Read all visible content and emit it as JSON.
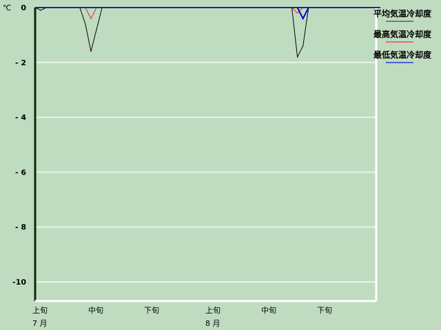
{
  "chart_data": {
    "type": "line",
    "yunit": "℃",
    "ylim": [
      -10.7,
      0
    ],
    "yticks": [
      0,
      -2,
      -4,
      -6,
      -8,
      -10
    ],
    "ytick_labels": [
      "0",
      "- 2",
      "- 4",
      "- 6",
      "- 8",
      "-10"
    ],
    "x_start": "7/1",
    "x_end": "8/31",
    "xtick_labels": [
      {
        "label": "上旬",
        "day_index": 0
      },
      {
        "label": "中旬",
        "day_index": 10
      },
      {
        "label": "下旬",
        "day_index": 20
      },
      {
        "label": "上旬",
        "day_index": 31
      },
      {
        "label": "中旬",
        "day_index": 41
      },
      {
        "label": "下旬",
        "day_index": 51
      }
    ],
    "month_labels": [
      {
        "label": "7 月",
        "day_index": 0
      },
      {
        "label": "8 月",
        "day_index": 31
      }
    ],
    "grid": true,
    "legend_position": "right",
    "series": [
      {
        "name": "平均気温冷却度",
        "color": "#000000",
        "legend_color": "#6b8070",
        "values": [
          0,
          -0.1,
          0,
          0,
          0,
          0,
          0,
          0,
          0,
          -0.6,
          -1.6,
          -0.8,
          0,
          0,
          0,
          0,
          0,
          0,
          0,
          0,
          0,
          0,
          0,
          0,
          0,
          0,
          0,
          0,
          0,
          0,
          0,
          0,
          0,
          0,
          0,
          0,
          0,
          0,
          0,
          0,
          0,
          0,
          0,
          0,
          0,
          0,
          0,
          -1.8,
          -1.4,
          0,
          0,
          0,
          0,
          0,
          0,
          0,
          0,
          0,
          0,
          0,
          0,
          0
        ]
      },
      {
        "name": "最高気温冷却度",
        "color": "#e03030",
        "legend_color": "#e07070",
        "values": [
          0,
          0,
          0,
          0,
          0,
          0,
          0,
          0,
          0,
          0,
          -0.4,
          0,
          0,
          0,
          0,
          0,
          0,
          0,
          0,
          0,
          0,
          0,
          0,
          0,
          0,
          0,
          0,
          0,
          0,
          0,
          0,
          0,
          0,
          0,
          0,
          0,
          0,
          0,
          0,
          0,
          0,
          0,
          0,
          0,
          0,
          0,
          0,
          -0.2,
          0,
          0,
          0,
          0,
          0,
          0,
          0,
          0,
          0,
          0,
          0,
          0,
          0,
          0
        ]
      },
      {
        "name": "最低気温冷却度",
        "color": "#0000e0",
        "legend_color": "#5060d0",
        "values": [
          0,
          0,
          0,
          0,
          0,
          0,
          0,
          0,
          0,
          0,
          0,
          0,
          0,
          0,
          0,
          0,
          0,
          0,
          0,
          0,
          0,
          0,
          0,
          0,
          0,
          0,
          0,
          0,
          0,
          0,
          0,
          0,
          0,
          0,
          0,
          0,
          0,
          0,
          0,
          0,
          0,
          0,
          0,
          0,
          0,
          0,
          0,
          0,
          -0.4,
          0,
          0,
          0,
          0,
          0,
          0,
          0,
          0,
          0,
          0,
          0,
          0,
          0
        ]
      }
    ]
  }
}
